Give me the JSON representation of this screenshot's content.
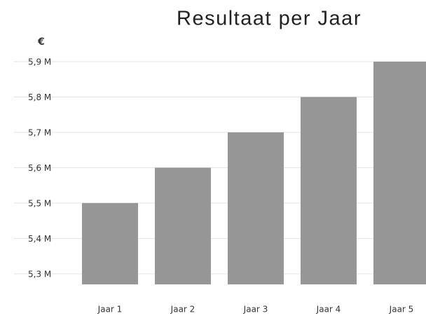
{
  "chart_data": {
    "type": "bar",
    "title": "Resultaat per Jaar",
    "y_label": "€",
    "categories": [
      "Jaar 1",
      "Jaar 2",
      "Jaar 3",
      "Jaar 4",
      "Jaar 5"
    ],
    "values": [
      5500000,
      5600000,
      5700000,
      5800000,
      5900000
    ],
    "color": "#969696",
    "ylim": [
      5270000,
      5900000
    ],
    "yticks": [
      {
        "value": 5300000,
        "label": "5,3 M"
      },
      {
        "value": 5400000,
        "label": "5,4 M"
      },
      {
        "value": 5500000,
        "label": "5,5 M"
      },
      {
        "value": 5600000,
        "label": "5,6 M"
      },
      {
        "value": 5700000,
        "label": "5,7 M"
      },
      {
        "value": 5800000,
        "label": "5,8 M"
      },
      {
        "value": 5900000,
        "label": "5,9 M"
      }
    ],
    "grid": true
  }
}
